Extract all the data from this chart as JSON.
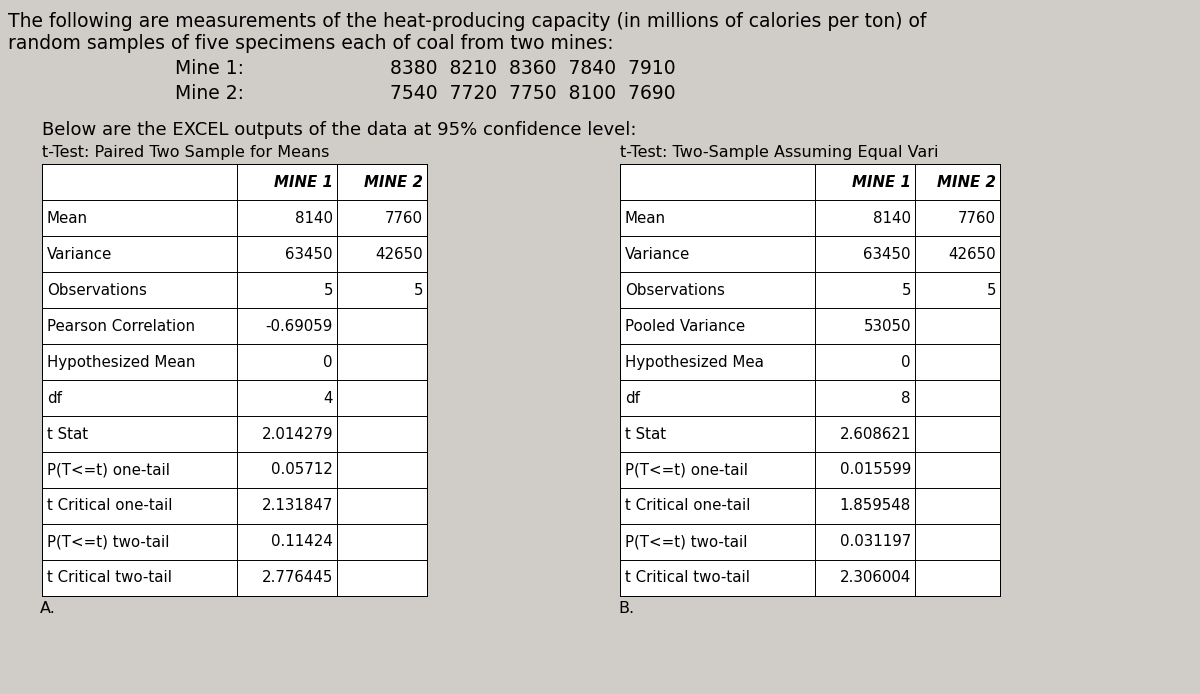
{
  "title_line1": "The following are measurements of the heat-producing capacity (in millions of calories per ton) of",
  "title_line2": "random samples of five specimens each of coal from two mines:",
  "mine1_label": "Mine 1:",
  "mine2_label": "Mine 2:",
  "mine1_data": "8380  8210  8360  7840  7910",
  "mine2_data": "7540  7720  7750  8100  7690",
  "subtitle": "Below are the EXCEL outputs of the data at 95% confidence level:",
  "table1_title": "t-Test: Paired Two Sample for Means",
  "table2_title": "t-Test: Two-Sample Assuming Equal Vari",
  "table1_headers": [
    "",
    "MINE 1",
    "MINE 2"
  ],
  "table1_rows": [
    [
      "Mean",
      "8140",
      "7760"
    ],
    [
      "Variance",
      "63450",
      "42650"
    ],
    [
      "Observations",
      "5",
      "5"
    ],
    [
      "Pearson Correlation",
      "-0.69059",
      ""
    ],
    [
      "Hypothesized Mean",
      "0",
      ""
    ],
    [
      "df",
      "4",
      ""
    ],
    [
      "t Stat",
      "2.014279",
      ""
    ],
    [
      "P(T<=t) one-tail",
      "0.05712",
      ""
    ],
    [
      "t Critical one-tail",
      "2.131847",
      ""
    ],
    [
      "P(T<=t) two-tail",
      "0.11424",
      ""
    ],
    [
      "t Critical two-tail",
      "2.776445",
      ""
    ]
  ],
  "table2_headers": [
    "",
    "MINE 1",
    "MINE 2"
  ],
  "table2_rows": [
    [
      "Mean",
      "8140",
      "7760"
    ],
    [
      "Variance",
      "63450",
      "42650"
    ],
    [
      "Observations",
      "5",
      "5"
    ],
    [
      "Pooled Variance",
      "53050",
      ""
    ],
    [
      "Hypothesized Mea",
      "0",
      ""
    ],
    [
      "df",
      "8",
      ""
    ],
    [
      "t Stat",
      "2.608621",
      ""
    ],
    [
      "P(T<=t) one-tail",
      "0.015599",
      ""
    ],
    [
      "t Critical one-tail",
      "1.859548",
      ""
    ],
    [
      "P(T<=t) two-tail",
      "0.031197",
      ""
    ],
    [
      "t Critical two-tail",
      "2.306004",
      ""
    ]
  ],
  "label_A": "A.",
  "label_B": "B.",
  "bg_color": "#d8d5d0",
  "text_color": "#000000",
  "fs_title": 13.5,
  "fs_subtitle": 13.0,
  "fs_table_title": 11.5,
  "fs_table": 10.8,
  "fs_header": 10.8
}
